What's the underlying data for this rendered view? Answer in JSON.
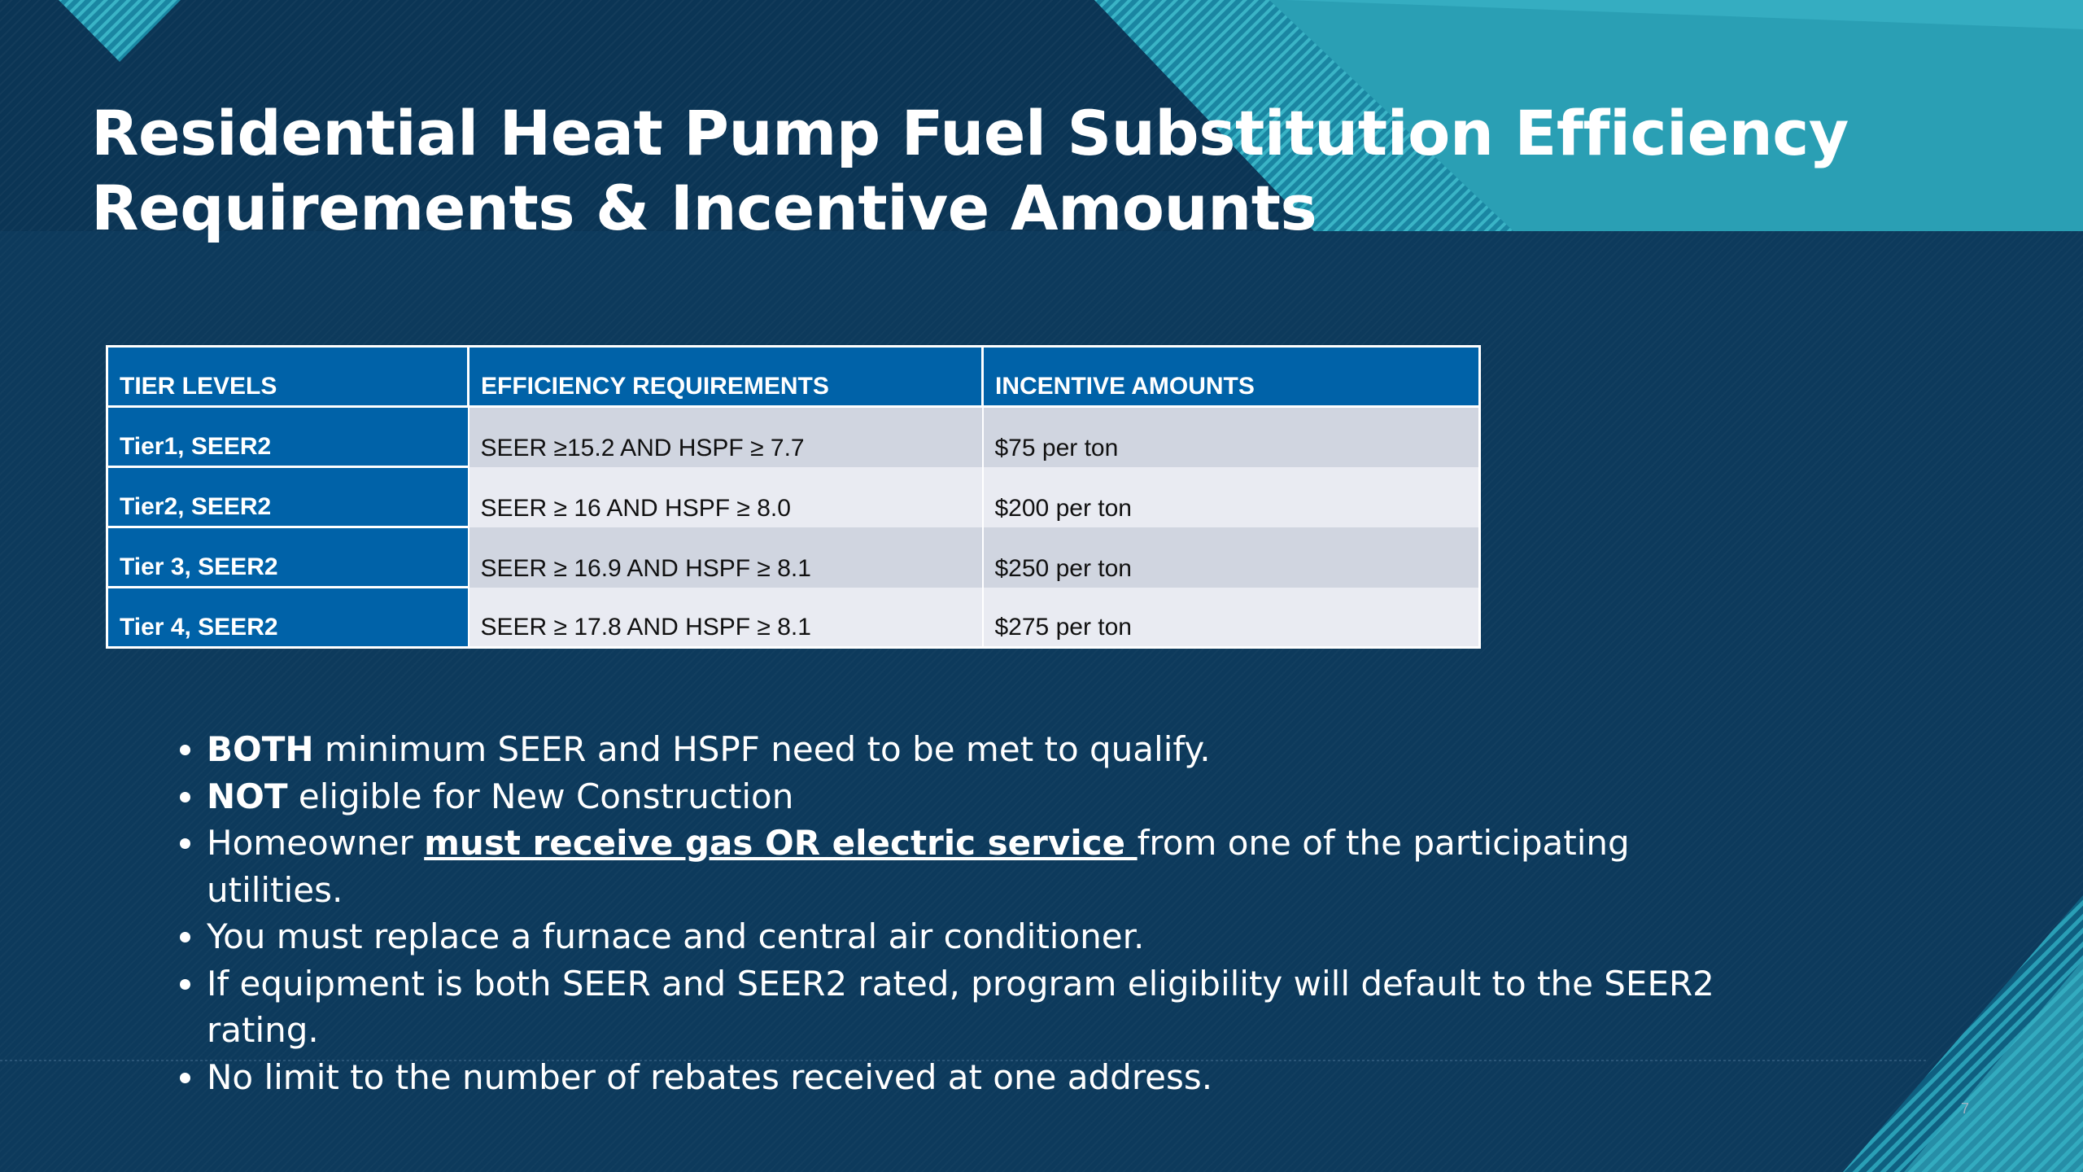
{
  "slide": {
    "title_line1": "Residential Heat Pump Fuel Substitution Efficiency",
    "title_line2": "Requirements & Incentive Amounts",
    "page_number": "7"
  },
  "table": {
    "headers": [
      "TIER LEVELS",
      "EFFICIENCY REQUIREMENTS",
      "INCENTIVE AMOUNTS"
    ],
    "rows": [
      {
        "tier": "Tier1, SEER2",
        "requirement": "SEER ≥15.2 AND HSPF ≥ 7.7",
        "incentive": "$75 per ton"
      },
      {
        "tier": "Tier2, SEER2",
        "requirement": "SEER ≥ 16 AND HSPF ≥ 8.0",
        "incentive": "$200 per ton"
      },
      {
        "tier": "Tier 3, SEER2",
        "requirement": "SEER ≥ 16.9 AND HSPF ≥ 8.1",
        "incentive": "$250 per ton"
      },
      {
        "tier": "Tier 4, SEER2",
        "requirement": "SEER ≥ 17.8 AND HSPF ≥ 8.1",
        "incentive": "$275 per ton"
      }
    ]
  },
  "bullets": {
    "b1_bold": "BOTH",
    "b1_text": " minimum SEER and HSPF need to be met to qualify.",
    "b2_bold": "NOT",
    "b2_text": " eligible for New Construction",
    "b3_pre": "Homeowner ",
    "b3_underline": "must receive gas OR electric service ",
    "b3_post": "from one of the participating utilities.",
    "b4_text": "You must replace a furnace and central air conditioner.",
    "b5_text": "If equipment is both SEER and SEER2 rated, program eligibility will default to the SEER2 rating.",
    "b6_text": "No limit to the number of rebates received at one address."
  },
  "colors": {
    "background": "#0d3a5c",
    "header_band": "#0b3555",
    "table_header": "#0062a8",
    "accent_teal": "#3ab4c6",
    "row_odd": "#d0d5e0",
    "row_even": "#e9ebf2"
  }
}
